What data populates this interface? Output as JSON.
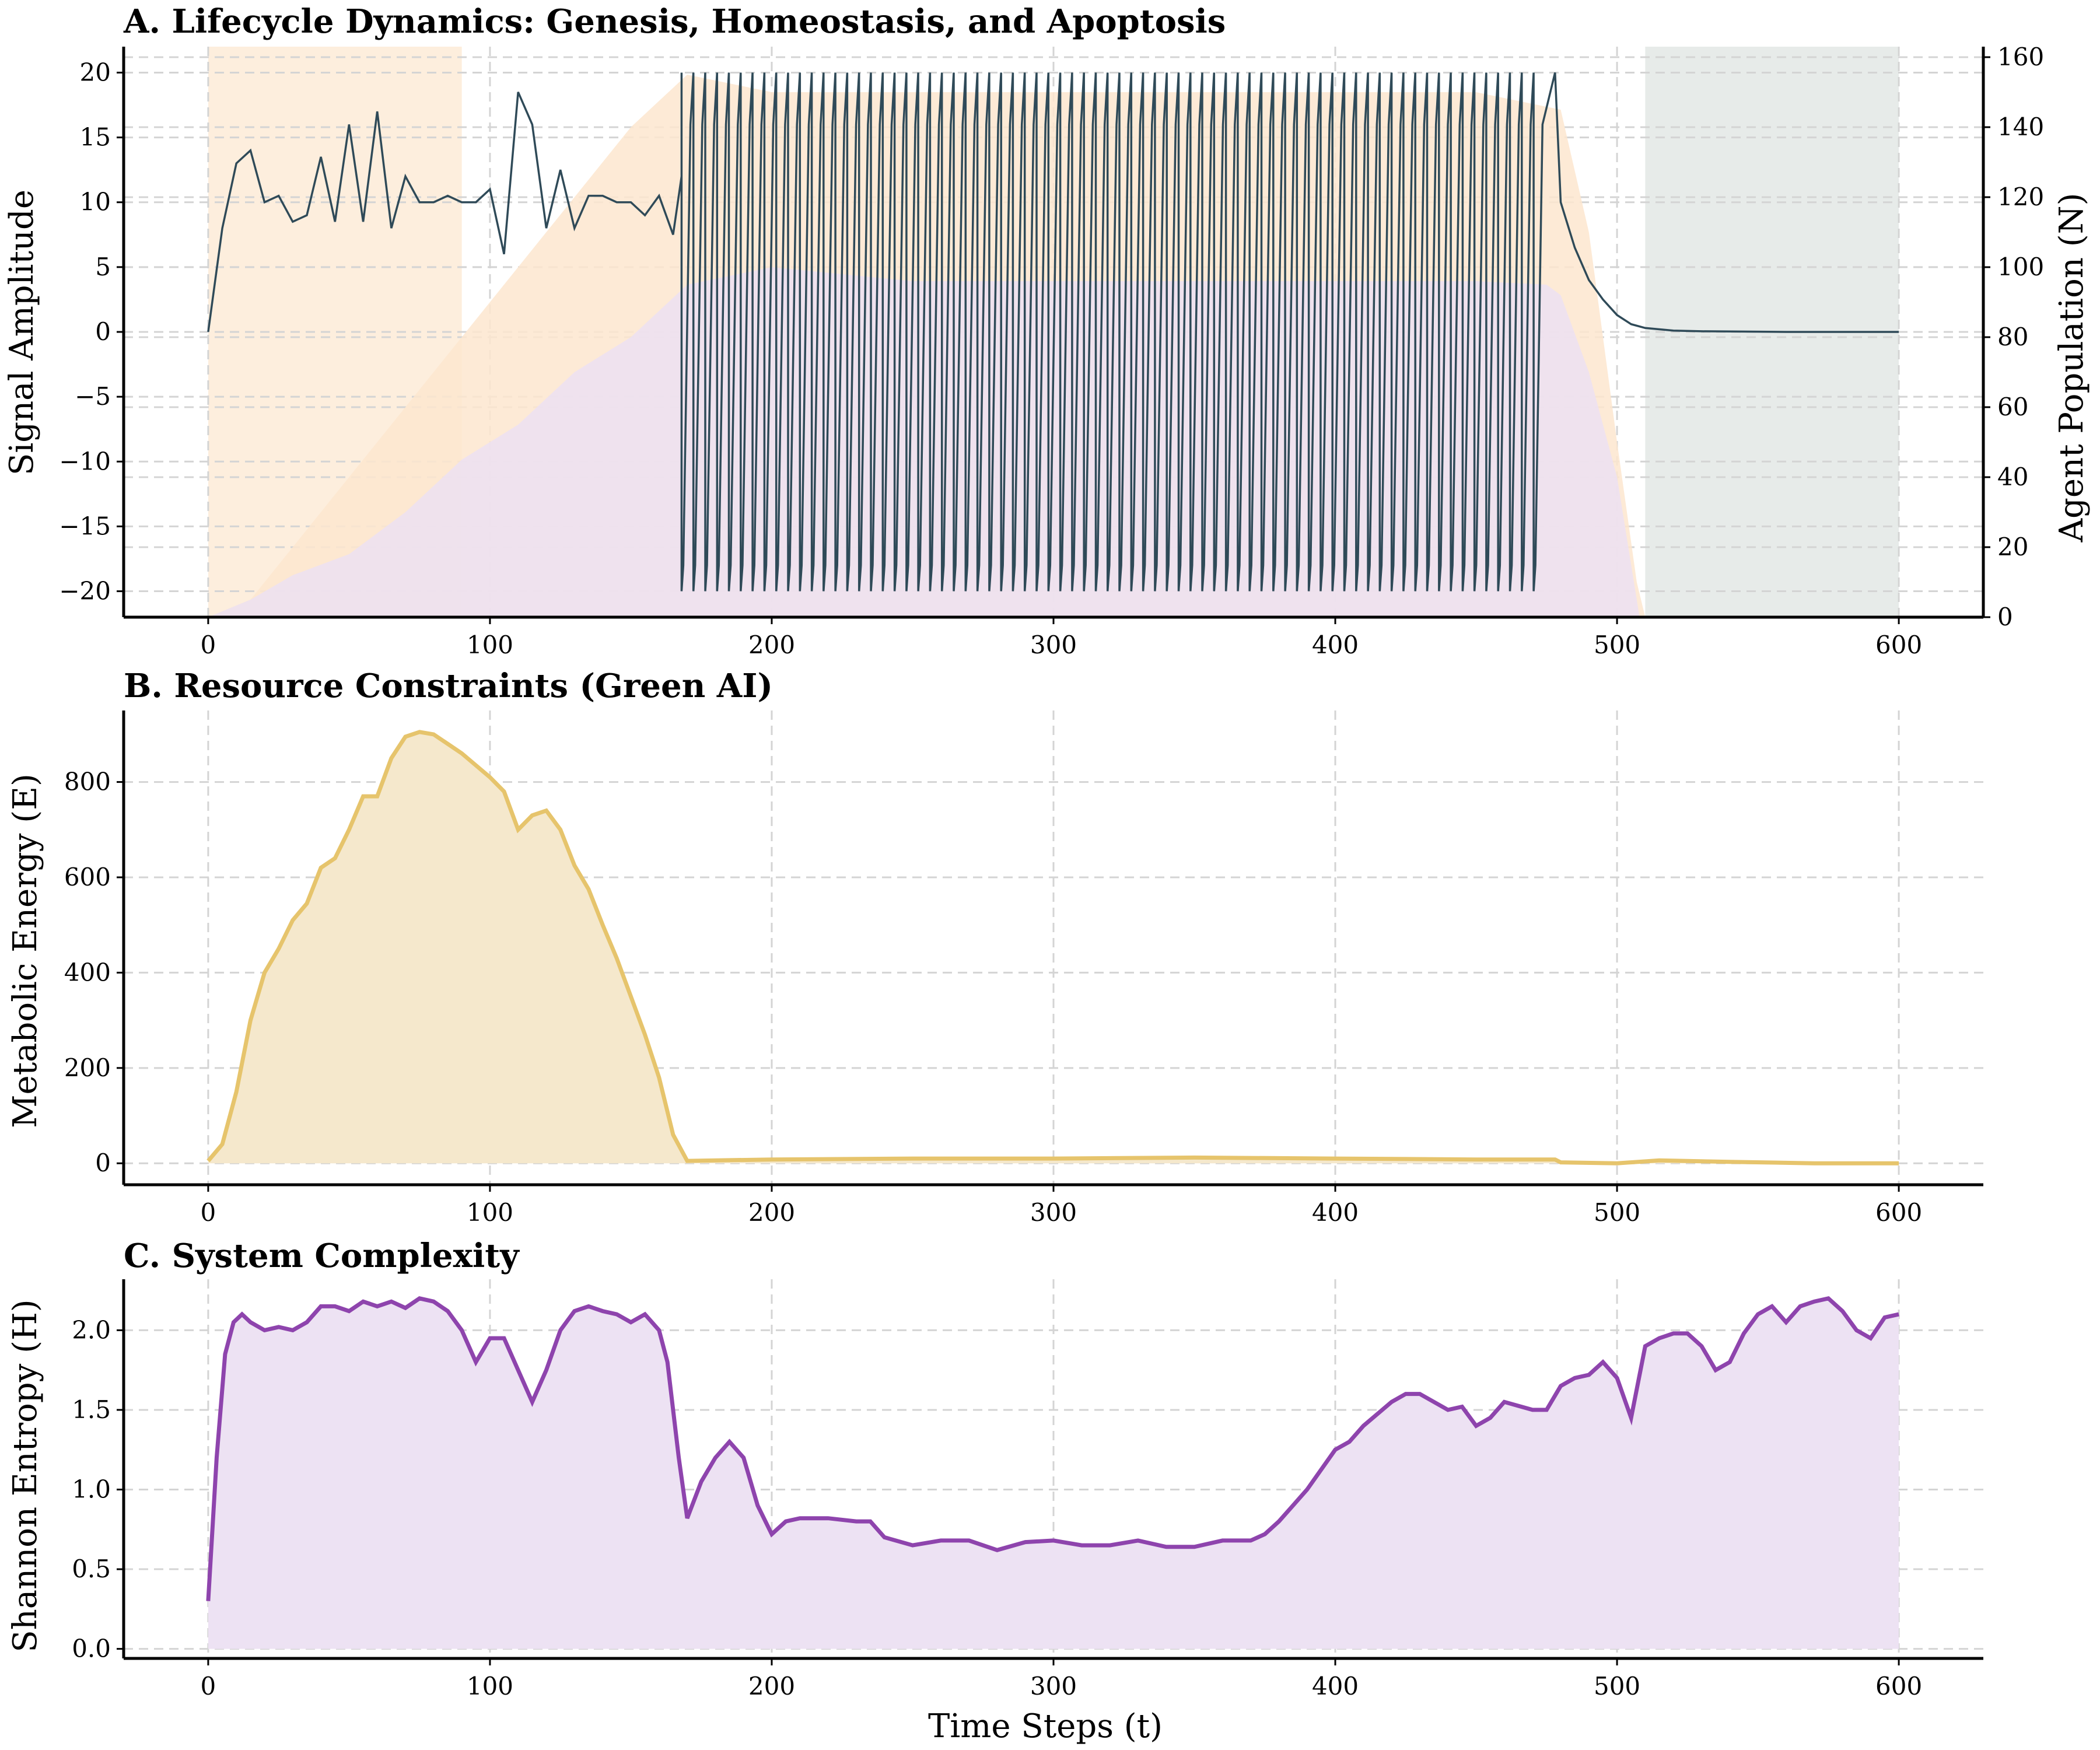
{
  "chart_data": [
    {
      "type": "line",
      "title": "A. Lifecycle Dynamics: Genesis, Homeostasis, and Apoptosis",
      "xlabel": "",
      "ylabel": "Signal Amplitude",
      "ylabel2": "Agent Population (N)",
      "xlim": [
        -30,
        630
      ],
      "ylim": [
        -22,
        22
      ],
      "ylim2": [
        0,
        163
      ],
      "xticks": [
        0,
        100,
        200,
        300,
        400,
        500,
        600
      ],
      "yticks": [
        -20,
        -15,
        -10,
        -5,
        0,
        5,
        10,
        15,
        20
      ],
      "yticks2": [
        0,
        20,
        40,
        60,
        80,
        100,
        120,
        140,
        160
      ],
      "grid": true,
      "shaded_regions": [
        {
          "x": [
            0,
            90
          ],
          "color": "#fdebd7"
        },
        {
          "x": [
            510,
            600
          ],
          "color": "#e3e8e5"
        }
      ],
      "series": [
        {
          "axis": "right",
          "style": "area",
          "color": "#fde6cf",
          "x": [
            0,
            15,
            40,
            80,
            120,
            150,
            170,
            200,
            300,
            400,
            450,
            480,
            490,
            500,
            507,
            510
          ],
          "values": [
            0,
            5,
            30,
            70,
            110,
            140,
            155,
            150,
            150,
            150,
            150,
            145,
            110,
            50,
            10,
            0
          ]
        },
        {
          "axis": "right",
          "style": "area",
          "color": "#ece1f2",
          "x": [
            0,
            15,
            30,
            50,
            70,
            90,
            110,
            130,
            150,
            170,
            200,
            250,
            300,
            350,
            400,
            450,
            475,
            480,
            490,
            500,
            505,
            508
          ],
          "values": [
            0,
            5,
            12,
            18,
            30,
            45,
            55,
            70,
            80,
            95,
            100,
            96,
            96,
            96,
            96,
            96,
            95,
            92,
            70,
            40,
            15,
            0
          ]
        },
        {
          "axis": "left",
          "style": "line",
          "color": "#2f4a58",
          "x": [
            0,
            5,
            10,
            15,
            20,
            25,
            30,
            35,
            40,
            45,
            50,
            55,
            60,
            65,
            70,
            75,
            80,
            85,
            90,
            95,
            100,
            105,
            110,
            115,
            120,
            125,
            130,
            135,
            140,
            145,
            150,
            155,
            160,
            165,
            168
          ],
          "values": [
            0,
            8,
            13,
            14,
            10,
            10.5,
            8.5,
            9,
            13.5,
            8.5,
            16,
            8.5,
            17,
            8,
            12,
            10,
            10,
            10.5,
            10,
            10,
            11,
            6,
            18.5,
            16,
            8,
            12.5,
            8,
            10.5,
            10.5,
            10,
            10,
            9,
            10.5,
            7.5,
            12
          ],
          "spikes": {
            "x_start": 168,
            "x_end": 478,
            "period": 4.2,
            "high": 20,
            "low": -20
          },
          "tail": {
            "x": [
              478,
              480,
              485,
              490,
              495,
              500,
              505,
              510,
              520,
              530,
              560,
              600
            ],
            "values": [
              20,
              10,
              6.5,
              4,
              2.5,
              1.3,
              0.6,
              0.3,
              0.1,
              0.05,
              0,
              0
            ]
          }
        }
      ]
    },
    {
      "type": "area",
      "title": "B. Resource Constraints (Green AI)",
      "xlabel": "",
      "ylabel": "Metabolic Energy (E)",
      "xlim": [
        -30,
        630
      ],
      "ylim": [
        -45,
        950
      ],
      "xticks": [
        0,
        100,
        200,
        300,
        400,
        500,
        600
      ],
      "yticks": [
        0,
        200,
        400,
        600,
        800
      ],
      "grid": true,
      "series": [
        {
          "color": "#e6c46c",
          "fill": "#f5e8cc",
          "x": [
            0,
            5,
            10,
            15,
            20,
            25,
            30,
            35,
            40,
            45,
            50,
            55,
            60,
            65,
            70,
            75,
            80,
            85,
            90,
            95,
            100,
            105,
            110,
            115,
            120,
            125,
            130,
            135,
            140,
            145,
            150,
            155,
            160,
            165,
            170,
            200,
            250,
            300,
            350,
            400,
            450,
            478,
            480,
            500,
            515,
            540,
            570,
            600
          ],
          "values": [
            5,
            40,
            150,
            300,
            400,
            450,
            510,
            545,
            620,
            640,
            700,
            770,
            770,
            850,
            895,
            905,
            900,
            880,
            860,
            835,
            810,
            780,
            700,
            730,
            740,
            700,
            625,
            575,
            500,
            430,
            350,
            270,
            180,
            60,
            5,
            8,
            10,
            10,
            12,
            10,
            8,
            8,
            2,
            0,
            6,
            3,
            0,
            0
          ]
        }
      ]
    },
    {
      "type": "area",
      "title": "C. System Complexity",
      "xlabel": "Time Steps (t)",
      "ylabel": "Shannon Entropy (H)",
      "xlim": [
        -30,
        630
      ],
      "ylim": [
        -0.06,
        2.32
      ],
      "xticks": [
        0,
        100,
        200,
        300,
        400,
        500,
        600
      ],
      "yticks": [
        0.0,
        0.5,
        1.0,
        1.5,
        2.0
      ],
      "grid": true,
      "series": [
        {
          "color": "#8e44ad",
          "fill": "#ede2f3",
          "x": [
            0,
            3,
            6,
            9,
            12,
            15,
            20,
            25,
            30,
            35,
            40,
            45,
            50,
            55,
            60,
            65,
            70,
            75,
            80,
            85,
            90,
            95,
            100,
            105,
            110,
            115,
            120,
            125,
            130,
            135,
            140,
            145,
            150,
            155,
            160,
            163,
            167,
            170,
            175,
            180,
            185,
            190,
            195,
            200,
            205,
            210,
            220,
            230,
            235,
            240,
            250,
            260,
            270,
            280,
            290,
            300,
            310,
            320,
            330,
            340,
            350,
            360,
            370,
            375,
            380,
            385,
            390,
            400,
            405,
            410,
            420,
            425,
            430,
            440,
            445,
            450,
            455,
            460,
            470,
            475,
            480,
            485,
            490,
            495,
            500,
            505,
            510,
            515,
            520,
            525,
            530,
            535,
            540,
            545,
            550,
            555,
            560,
            565,
            570,
            575,
            580,
            585,
            590,
            595,
            600
          ],
          "values": [
            0.3,
            1.2,
            1.85,
            2.05,
            2.1,
            2.05,
            2.0,
            2.02,
            2.0,
            2.05,
            2.15,
            2.15,
            2.12,
            2.18,
            2.15,
            2.18,
            2.14,
            2.2,
            2.18,
            2.12,
            2.0,
            1.8,
            1.95,
            1.95,
            1.75,
            1.55,
            1.75,
            2.0,
            2.12,
            2.15,
            2.12,
            2.1,
            2.05,
            2.1,
            2.0,
            1.8,
            1.2,
            0.82,
            1.05,
            1.2,
            1.3,
            1.2,
            0.9,
            0.72,
            0.8,
            0.82,
            0.82,
            0.8,
            0.8,
            0.7,
            0.65,
            0.68,
            0.68,
            0.62,
            0.67,
            0.68,
            0.65,
            0.65,
            0.68,
            0.64,
            0.64,
            0.68,
            0.68,
            0.72,
            0.8,
            0.9,
            1.0,
            1.25,
            1.3,
            1.4,
            1.55,
            1.6,
            1.6,
            1.5,
            1.52,
            1.4,
            1.45,
            1.55,
            1.5,
            1.5,
            1.65,
            1.7,
            1.72,
            1.8,
            1.7,
            1.45,
            1.9,
            1.95,
            1.98,
            1.98,
            1.9,
            1.75,
            1.8,
            1.98,
            2.1,
            2.15,
            2.05,
            2.15,
            2.18,
            2.2,
            2.12,
            2.0,
            1.95,
            2.08,
            2.1
          ]
        }
      ]
    }
  ]
}
